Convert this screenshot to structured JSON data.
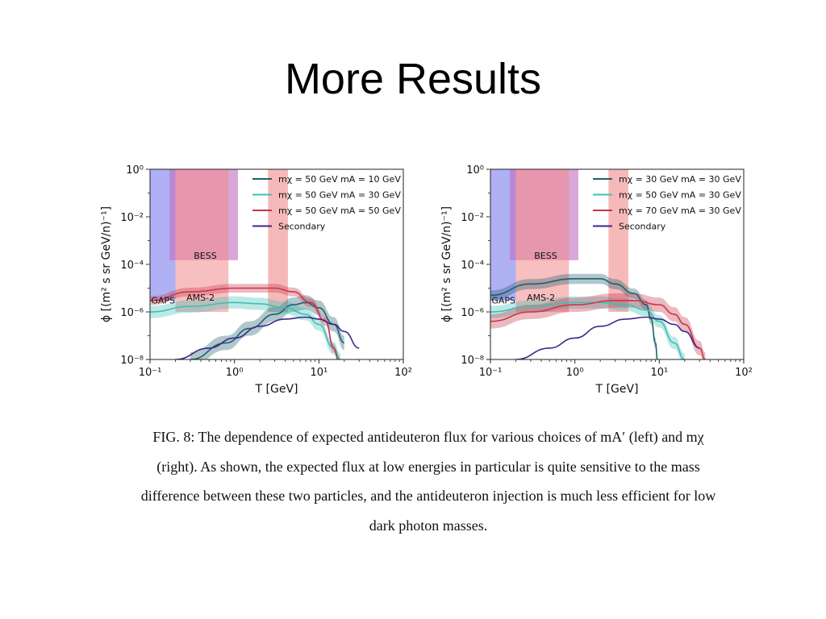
{
  "slide": {
    "title": "More Results"
  },
  "caption": {
    "lines": [
      "FIG. 8: The dependence of expected antideuteron flux for various choices of mA′ (left) and mχ",
      "(right). As shown, the expected flux at low energies in particular is quite sensitive to the mass",
      "difference between these two particles, and the antideuteron injection is much less efficient for low",
      "dark photon masses."
    ]
  },
  "chart_data": [
    {
      "type": "line",
      "panel": "left",
      "xlabel": "T [GeV]",
      "ylabel": "ϕ [(m² s sr GeV/n)⁻¹]",
      "x_scale": "log",
      "y_scale": "log",
      "xlim": [
        0.1,
        100
      ],
      "ylim": [
        1e-08,
        1
      ],
      "x_ticks": [
        {
          "value": 0.1,
          "label": "10⁻¹"
        },
        {
          "value": 1,
          "label": "10⁰"
        },
        {
          "value": 10,
          "label": "10¹"
        },
        {
          "value": 100,
          "label": "10²"
        }
      ],
      "y_ticks": [
        {
          "value": 1e-08,
          "label": "10⁻⁸"
        },
        {
          "value": 1e-06,
          "label": "10⁻⁶"
        },
        {
          "value": 0.0001,
          "label": "10⁻⁴"
        },
        {
          "value": 0.01,
          "label": "10⁻²"
        },
        {
          "value": 1,
          "label": "10⁰"
        }
      ],
      "legend_position": "top-right",
      "regions": [
        {
          "name": "GAPS",
          "x": [
            0.1,
            0.2
          ],
          "y": [
            3e-06,
            1
          ],
          "color": "#8e8ef0",
          "opacity": 0.7
        },
        {
          "name": "BESS",
          "x": [
            0.17,
            1.1
          ],
          "y": [
            0.00015,
            1
          ],
          "color": "#c06cc0",
          "opacity": 0.6
        },
        {
          "name": "AMS-2",
          "x": [
            0.2,
            0.85
          ],
          "y": [
            1e-06,
            1
          ],
          "color": "#f08a8a",
          "opacity": 0.55
        },
        {
          "name": "",
          "x": [
            2.5,
            4.3
          ],
          "y": [
            1e-06,
            1
          ],
          "color": "#f08a8a",
          "opacity": 0.6
        }
      ],
      "region_labels": [
        {
          "text": "GAPS",
          "x": 0.103,
          "y": 2.3e-06
        },
        {
          "text": "BESS",
          "x": 0.33,
          "y": 0.00017
        },
        {
          "text": "AMS-2",
          "x": 0.27,
          "y": 3e-06
        }
      ],
      "series": [
        {
          "name": "mχ = 50 GeV mA = 10 GeV",
          "color": "#1f5f6e",
          "x": [
            0.3,
            0.8,
            1.5,
            3,
            5,
            7,
            10,
            15,
            20
          ],
          "y": [
            1e-08,
            5e-08,
            2e-07,
            8e-07,
            2e-06,
            2.5e-06,
            1.5e-06,
            3e-07,
            5e-08
          ],
          "band": [
            0.5,
            2
          ]
        },
        {
          "name": "mχ = 50 GeV mA = 30 GeV",
          "color": "#3fbfb5",
          "x": [
            0.1,
            0.3,
            1,
            2,
            4,
            7,
            10,
            15,
            18
          ],
          "y": [
            1e-06,
            1.7e-06,
            2.5e-06,
            2.2e-06,
            1.5e-06,
            8e-07,
            3e-07,
            3e-08,
            1e-08
          ],
          "band": [
            0.55,
            1.8
          ]
        },
        {
          "name": "mχ = 50 GeV mA = 50 GeV",
          "color": "#c9374a",
          "x": [
            0.1,
            0.3,
            1,
            3,
            5,
            8,
            12,
            15,
            17
          ],
          "y": [
            3e-06,
            7e-06,
            1e-05,
            1e-05,
            7e-06,
            2.5e-06,
            4e-07,
            3e-08,
            1e-08
          ],
          "band": [
            0.65,
            1.5
          ]
        },
        {
          "name": "Secondary",
          "color": "#3a2a8c",
          "x": [
            0.2,
            0.5,
            1,
            2,
            4,
            7,
            10,
            15,
            20,
            30
          ],
          "y": [
            1e-08,
            3e-08,
            8e-08,
            2.5e-07,
            5e-07,
            6e-07,
            5e-07,
            3e-07,
            1.5e-07,
            3e-08
          ]
        }
      ]
    },
    {
      "type": "line",
      "panel": "right",
      "xlabel": "T [GeV]",
      "ylabel": "ϕ [(m² s sr GeV/n)⁻¹]",
      "x_scale": "log",
      "y_scale": "log",
      "xlim": [
        0.1,
        100
      ],
      "ylim": [
        1e-08,
        1
      ],
      "x_ticks": [
        {
          "value": 0.1,
          "label": "10⁻¹"
        },
        {
          "value": 1,
          "label": "10⁰"
        },
        {
          "value": 10,
          "label": "10¹"
        },
        {
          "value": 100,
          "label": "10²"
        }
      ],
      "y_ticks": [
        {
          "value": 1e-08,
          "label": "10⁻⁸"
        },
        {
          "value": 1e-06,
          "label": "10⁻⁶"
        },
        {
          "value": 0.0001,
          "label": "10⁻⁴"
        },
        {
          "value": 0.01,
          "label": "10⁻²"
        },
        {
          "value": 1,
          "label": "10⁰"
        }
      ],
      "legend_position": "top-right",
      "regions": [
        {
          "name": "GAPS",
          "x": [
            0.1,
            0.2
          ],
          "y": [
            3e-06,
            1
          ],
          "color": "#8e8ef0",
          "opacity": 0.7
        },
        {
          "name": "BESS",
          "x": [
            0.17,
            1.1
          ],
          "y": [
            0.00015,
            1
          ],
          "color": "#c06cc0",
          "opacity": 0.6
        },
        {
          "name": "AMS-2",
          "x": [
            0.2,
            0.85
          ],
          "y": [
            1e-06,
            1
          ],
          "color": "#f08a8a",
          "opacity": 0.55
        },
        {
          "name": "",
          "x": [
            2.5,
            4.3
          ],
          "y": [
            1e-06,
            1
          ],
          "color": "#f08a8a",
          "opacity": 0.6
        }
      ],
      "region_labels": [
        {
          "text": "GAPS",
          "x": 0.103,
          "y": 2.3e-06
        },
        {
          "text": "BESS",
          "x": 0.33,
          "y": 0.00017
        },
        {
          "text": "AMS-2",
          "x": 0.27,
          "y": 3e-06
        }
      ],
      "series": [
        {
          "name": "mχ = 30 GeV mA = 30 GeV",
          "color": "#1f5f6e",
          "x": [
            0.1,
            0.3,
            1,
            2,
            3,
            5,
            7,
            8,
            9,
            9.5
          ],
          "y": [
            5e-06,
            1.5e-05,
            2.5e-05,
            2.5e-05,
            1.5e-05,
            6e-06,
            2e-06,
            5e-07,
            5e-08,
            1e-08
          ],
          "band": [
            0.6,
            1.6
          ]
        },
        {
          "name": "mχ = 50 GeV mA = 30 GeV",
          "color": "#3fbfb5",
          "x": [
            0.1,
            0.3,
            1,
            2,
            4,
            7,
            10,
            15,
            20
          ],
          "y": [
            1e-06,
            1.7e-06,
            2.5e-06,
            2.5e-06,
            2e-06,
            1.2e-06,
            4e-07,
            5e-08,
            1e-08
          ],
          "band": [
            0.55,
            1.8
          ]
        },
        {
          "name": "mχ = 70 GeV mA = 30 GeV",
          "color": "#c9374a",
          "x": [
            0.1,
            0.3,
            1,
            3,
            5,
            10,
            15,
            20,
            30,
            35
          ],
          "y": [
            4e-07,
            1e-06,
            2e-06,
            3e-06,
            3e-06,
            2e-06,
            8e-07,
            3e-07,
            3e-08,
            1e-08
          ],
          "band": [
            0.5,
            2
          ]
        },
        {
          "name": "Secondary",
          "color": "#3a2a8c",
          "x": [
            0.2,
            0.5,
            1,
            2,
            4,
            7,
            10,
            15,
            20,
            30
          ],
          "y": [
            1e-08,
            3e-08,
            8e-08,
            2.5e-07,
            5e-07,
            6e-07,
            5e-07,
            3e-07,
            1.5e-07,
            3e-08
          ]
        }
      ]
    }
  ]
}
